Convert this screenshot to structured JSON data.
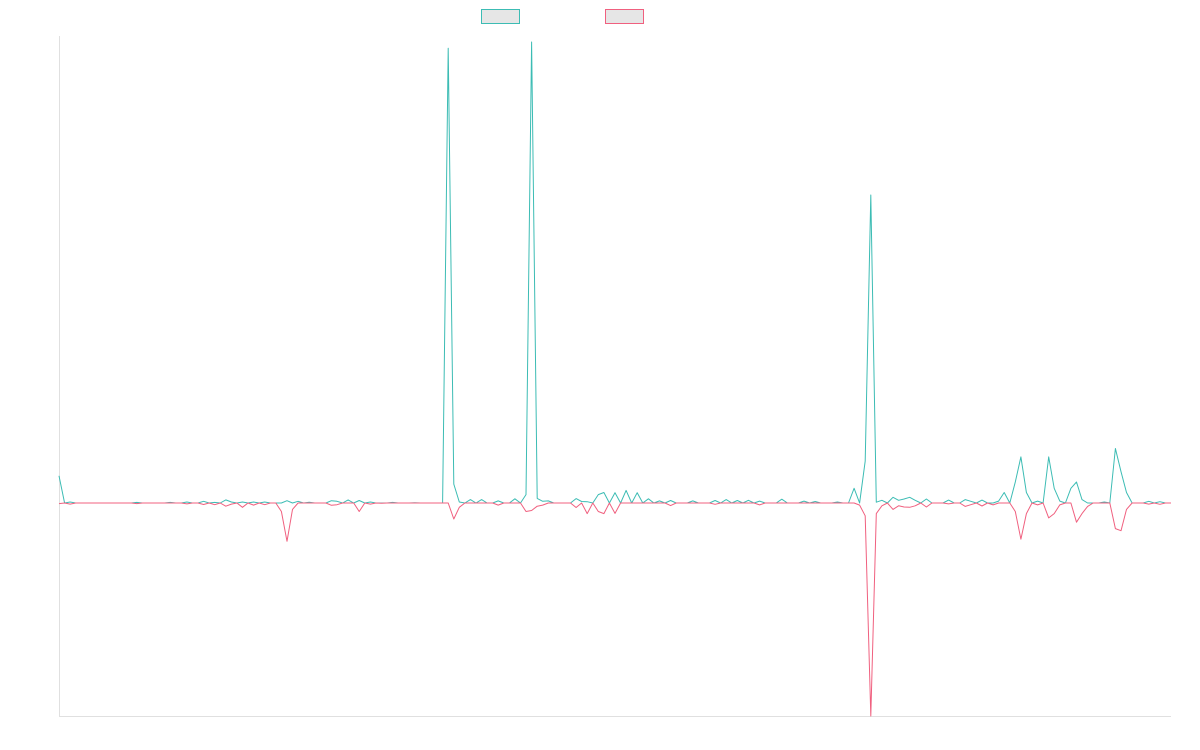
{
  "chart_data": {
    "type": "line",
    "title": "",
    "xlabel": "",
    "ylabel": "",
    "grid": false,
    "legend_position": "top-center",
    "x_range": [
      0,
      200
    ],
    "ylim": [
      -1.0,
      2.2
    ],
    "series": [
      {
        "color": "#3cbcb4",
        "baseline": "zero",
        "peaks": [
          [
            0,
            0.13
          ],
          [
            2,
            0.005
          ],
          [
            14,
            0.003
          ],
          [
            20,
            0.003
          ],
          [
            23,
            0.005
          ],
          [
            26,
            0.008
          ],
          [
            28,
            0.003
          ],
          [
            30,
            0.015
          ],
          [
            31,
            0.005
          ],
          [
            33,
            0.005
          ],
          [
            35,
            0.005
          ],
          [
            37,
            0.005
          ],
          [
            41,
            0.011
          ],
          [
            43,
            0.008
          ],
          [
            45,
            0.004
          ],
          [
            49,
            0.011
          ],
          [
            50,
            0.008
          ],
          [
            52,
            0.015
          ],
          [
            54,
            0.012
          ],
          [
            56,
            0.005
          ],
          [
            60,
            0.003
          ],
          [
            64,
            0.001
          ],
          [
            70,
            2.17
          ],
          [
            71,
            0.09
          ],
          [
            72,
            0.005
          ],
          [
            74,
            0.016
          ],
          [
            76,
            0.016
          ],
          [
            79,
            0.01
          ],
          [
            82,
            0.02
          ],
          [
            84,
            0.04
          ],
          [
            85,
            2.2
          ],
          [
            86,
            0.022
          ],
          [
            87,
            0.008
          ],
          [
            88,
            0.01
          ],
          [
            93,
            0.021
          ],
          [
            94,
            0.007
          ],
          [
            95,
            0.006
          ],
          [
            97,
            0.04
          ],
          [
            98,
            0.05
          ],
          [
            100,
            0.049
          ],
          [
            102,
            0.06
          ],
          [
            104,
            0.049
          ],
          [
            106,
            0.02
          ],
          [
            108,
            0.01
          ],
          [
            110,
            0.012
          ],
          [
            114,
            0.01
          ],
          [
            118,
            0.012
          ],
          [
            120,
            0.016
          ],
          [
            122,
            0.012
          ],
          [
            124,
            0.013
          ],
          [
            126,
            0.009
          ],
          [
            130,
            0.018
          ],
          [
            134,
            0.009
          ],
          [
            136,
            0.007
          ],
          [
            140,
            0.005
          ],
          [
            143,
            0.07
          ],
          [
            145,
            0.2
          ],
          [
            146,
            1.47
          ],
          [
            147,
            0.004
          ],
          [
            148,
            0.013
          ],
          [
            150,
            0.027
          ],
          [
            151,
            0.013
          ],
          [
            152,
            0.019
          ],
          [
            153,
            0.027
          ],
          [
            154,
            0.013
          ],
          [
            156,
            0.019
          ],
          [
            160,
            0.014
          ],
          [
            163,
            0.016
          ],
          [
            164,
            0.008
          ],
          [
            166,
            0.014
          ],
          [
            169,
            0.009
          ],
          [
            170,
            0.05
          ],
          [
            172,
            0.1
          ],
          [
            173,
            0.22
          ],
          [
            174,
            0.05
          ],
          [
            176,
            0.009
          ],
          [
            178,
            0.22
          ],
          [
            179,
            0.07
          ],
          [
            180,
            0.009
          ],
          [
            182,
            0.07
          ],
          [
            183,
            0.1
          ],
          [
            184,
            0.016
          ],
          [
            188,
            0.005
          ],
          [
            190,
            0.26
          ],
          [
            191,
            0.15
          ],
          [
            192,
            0.05
          ],
          [
            196,
            0.008
          ],
          [
            198,
            0.006
          ]
        ]
      },
      {
        "color": "#f0607f",
        "baseline": "zero",
        "peaks": [
          [
            0,
            -0.003
          ],
          [
            2,
            -0.005
          ],
          [
            14,
            -0.003
          ],
          [
            23,
            -0.004
          ],
          [
            26,
            -0.007
          ],
          [
            28,
            -0.008
          ],
          [
            30,
            -0.015
          ],
          [
            31,
            -0.005
          ],
          [
            33,
            -0.02
          ],
          [
            35,
            -0.01
          ],
          [
            37,
            -0.008
          ],
          [
            40,
            -0.04
          ],
          [
            41,
            -0.18
          ],
          [
            42,
            -0.03
          ],
          [
            49,
            -0.011
          ],
          [
            50,
            -0.008
          ],
          [
            54,
            -0.04
          ],
          [
            56,
            -0.005
          ],
          [
            58,
            -0.001
          ],
          [
            71,
            -0.075
          ],
          [
            72,
            -0.02
          ],
          [
            79,
            -0.01
          ],
          [
            84,
            -0.04
          ],
          [
            85,
            -0.035
          ],
          [
            86,
            -0.015
          ],
          [
            87,
            -0.01
          ],
          [
            93,
            -0.021
          ],
          [
            95,
            -0.05
          ],
          [
            97,
            -0.04
          ],
          [
            98,
            -0.05
          ],
          [
            100,
            -0.049
          ],
          [
            110,
            -0.012
          ],
          [
            118,
            -0.006
          ],
          [
            126,
            -0.009
          ],
          [
            144,
            -0.01
          ],
          [
            145,
            -0.06
          ],
          [
            146,
            -1.0
          ],
          [
            147,
            -0.05
          ],
          [
            148,
            -0.013
          ],
          [
            150,
            -0.03
          ],
          [
            151,
            -0.013
          ],
          [
            152,
            -0.019
          ],
          [
            153,
            -0.02
          ],
          [
            154,
            -0.013
          ],
          [
            156,
            -0.019
          ],
          [
            160,
            -0.004
          ],
          [
            163,
            -0.016
          ],
          [
            164,
            -0.008
          ],
          [
            166,
            -0.014
          ],
          [
            168,
            -0.009
          ],
          [
            172,
            -0.04
          ],
          [
            173,
            -0.17
          ],
          [
            174,
            -0.05
          ],
          [
            176,
            -0.009
          ],
          [
            178,
            -0.07
          ],
          [
            179,
            -0.05
          ],
          [
            180,
            -0.009
          ],
          [
            183,
            -0.09
          ],
          [
            184,
            -0.05
          ],
          [
            185,
            -0.016
          ],
          [
            190,
            -0.12
          ],
          [
            191,
            -0.13
          ],
          [
            192,
            -0.03
          ],
          [
            196,
            -0.005
          ],
          [
            198,
            -0.006
          ]
        ]
      }
    ]
  }
}
